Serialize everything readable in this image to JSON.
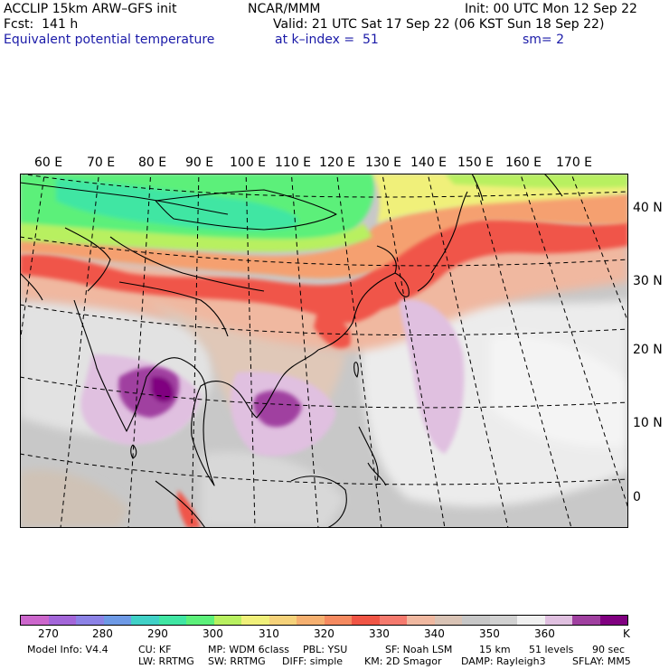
{
  "header": {
    "model_line": "ACCLIP 15km ARW–GFS init",
    "fcst_line": "Fcst:  141 h",
    "field_name": "Equivalent potential temperature",
    "center": "NCAR/MMM",
    "valid_line": "Valid: 21 UTC Sat 17 Sep 22 (06 KST Sun 18 Sep 22)",
    "level_line": "at k–index =  51",
    "init_line": "Init: 00 UTC Mon 12 Sep 22",
    "smooth_line": "sm= 2"
  },
  "map": {
    "lon_labels": [
      "60 E",
      "70 E",
      "80 E",
      "90 E",
      "100 E",
      "110 E",
      "120 E",
      "130 E",
      "140 E",
      "150 E",
      "160 E",
      "170 E"
    ],
    "lat_labels": [
      "40 N",
      "30 N",
      "20 N",
      "10 N",
      "0"
    ]
  },
  "colorbar": {
    "colors": [
      "#cc66cc",
      "#a366d9",
      "#8c82e6",
      "#6e9ae6",
      "#40d1c7",
      "#40e6a3",
      "#5cf07a",
      "#b8f060",
      "#f0f07a",
      "#f5d27a",
      "#f5b070",
      "#f58a60",
      "#f05545",
      "#f57a6e",
      "#f0b8a0",
      "#d9c3b5",
      "#c7c7c7",
      "#d1d1d1",
      "#f0f0f0",
      "#e0c0e0",
      "#a040a0",
      "#800080"
    ],
    "tick_labels": [
      "270",
      "280",
      "290",
      "300",
      "310",
      "320",
      "330",
      "340",
      "350",
      "360",
      "K"
    ],
    "unit": "K",
    "colors_note": "magenta-purple (270 K) through blue, teal, green, yellow, orange, red, salmon, grey, white to purple (>360 K)"
  },
  "footer": {
    "line1": [
      "Model Info: V4.4",
      "CU: KF",
      "MP: WDM 6class",
      "PBL: YSU",
      "SF: Noah LSM",
      "15 km",
      "51 levels",
      "90 sec"
    ],
    "line2": [
      "LW: RRTMG",
      "SW: RRTMG",
      "DIFF: simple",
      "KM: 2D Smagor",
      "DAMP: Rayleigh3",
      "SFLAY: MM5"
    ]
  }
}
